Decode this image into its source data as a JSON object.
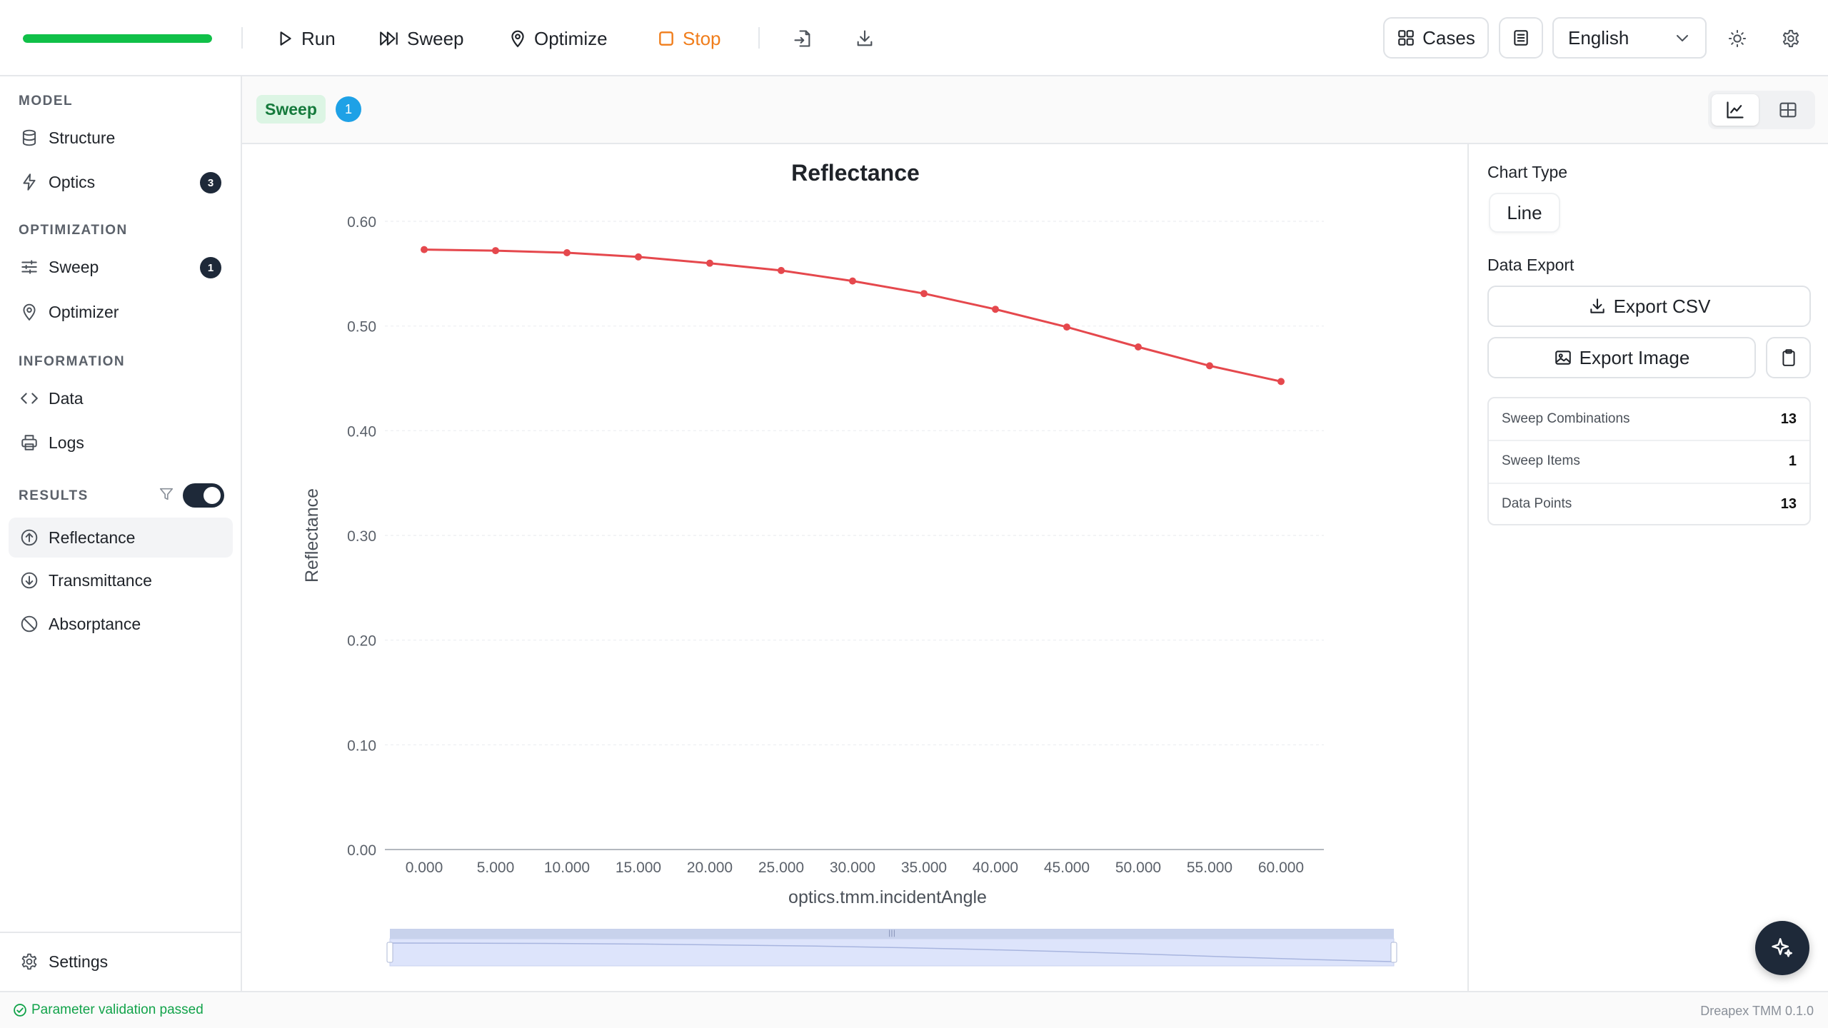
{
  "toolbar": {
    "progress_percent": 100,
    "run_label": "Run",
    "sweep_label": "Sweep",
    "optimize_label": "Optimize",
    "stop_label": "Stop",
    "cases_label": "Cases",
    "language": "English",
    "icons": [
      "play-icon",
      "sweep-icon",
      "location-pin-icon",
      "stop-square-icon",
      "import-icon",
      "download-icon",
      "grid-icon",
      "document-icon",
      "sun-icon",
      "gear-icon"
    ],
    "stop_color": "#f07d1b"
  },
  "sidebar": {
    "sections": [
      {
        "title": "MODEL",
        "items": [
          {
            "label": "Structure",
            "icon": "database-icon"
          },
          {
            "label": "Optics",
            "icon": "lightning-icon",
            "badge": "3"
          }
        ]
      },
      {
        "title": "OPTIMIZATION",
        "items": [
          {
            "label": "Sweep",
            "icon": "sliders-icon",
            "badge": "1"
          },
          {
            "label": "Optimizer",
            "icon": "location-pin-icon"
          }
        ]
      },
      {
        "title": "INFORMATION",
        "items": [
          {
            "label": "Data",
            "icon": "code-icon"
          },
          {
            "label": "Logs",
            "icon": "printer-icon"
          }
        ]
      },
      {
        "title": "RESULTS",
        "toggle_on": true,
        "items": [
          {
            "label": "Reflectance",
            "icon": "arrow-up-circle-icon",
            "active": true
          },
          {
            "label": "Transmittance",
            "icon": "arrow-down-circle-icon"
          },
          {
            "label": "Absorptance",
            "icon": "ban-circle-icon"
          }
        ]
      }
    ],
    "settings_label": "Settings"
  },
  "subheader": {
    "tag": "Sweep",
    "count": "1"
  },
  "chart_data": {
    "type": "line",
    "title": "Reflectance",
    "xlabel": "optics.tmm.incidentAngle",
    "ylabel": "Reflectance",
    "x": [
      "0.000",
      "5.000",
      "10.000",
      "15.000",
      "20.000",
      "25.000",
      "30.000",
      "35.000",
      "40.000",
      "45.000",
      "50.000",
      "55.000",
      "60.000"
    ],
    "series": [
      {
        "values": [
          0.573,
          0.572,
          0.57,
          0.566,
          0.56,
          0.553,
          0.543,
          0.531,
          0.516,
          0.499,
          0.48,
          0.462,
          0.447
        ],
        "color": "#e5484d"
      }
    ],
    "ylim": [
      0,
      0.6
    ],
    "yticks": [
      "0.00",
      "0.10",
      "0.20",
      "0.30",
      "0.40",
      "0.50",
      "0.60"
    ],
    "grid": true,
    "datazoom_slider": true
  },
  "rightpanel": {
    "chart_type_label": "Chart Type",
    "chart_type_value": "Line",
    "data_export_label": "Data Export",
    "export_csv_label": "Export CSV",
    "export_image_label": "Export Image",
    "stats": [
      {
        "label": "Sweep Combinations",
        "value": "13"
      },
      {
        "label": "Sweep Items",
        "value": "1"
      },
      {
        "label": "Data Points",
        "value": "13"
      }
    ]
  },
  "statusbar": {
    "status": "Parameter validation passed",
    "version": "Dreapex TMM 0.1.0"
  }
}
